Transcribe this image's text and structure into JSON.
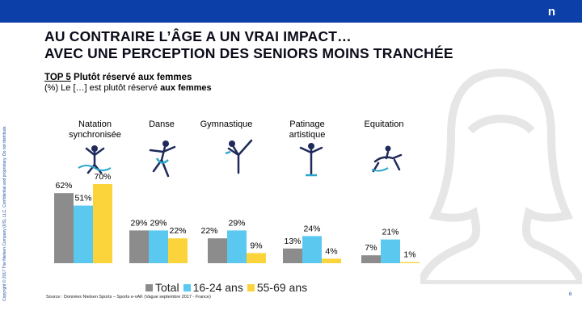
{
  "title": "AU CONTRAIRE L’ÂGE A UN VRAI IMPACT…\nAVEC UNE PERCEPTION DES SENIORS MOINS TRANCHÉE",
  "subtitle": {
    "top_prefix": "TOP 5",
    "top_rest": " Plutôt réservé aux femmes",
    "question_prefix": "(%) Le […] est plutôt réservé ",
    "question_bold": "aux femmes"
  },
  "copyright": "Copyright © 2017 The Nielsen Company (US), LLC. Confidential and proprietary. Do not distribute.",
  "source": "Source : Données Nielsen Sports – Sports e-vAK (Vague septembre 2017 - France)",
  "page_number": "6",
  "logo_text": "n",
  "colors": {
    "header": "#0d3fa8",
    "total": "#8c8c8c",
    "age_16_24": "#5bc8f0",
    "age_55_69": "#fbd43c",
    "silhouette": "#e6e6e6",
    "pictogram": "#1f2a5a",
    "pictogram_accent": "#2aa6c9"
  },
  "icons": [
    "swimmer-icon",
    "dancer-icon",
    "gymnast-icon",
    "skater-icon",
    "equestrian-icon"
  ],
  "chart_data": {
    "type": "bar",
    "categories": [
      "Natation\nsynchronisée",
      "Danse",
      "Gymnastique",
      "Patinage\nartistique",
      "Equitation"
    ],
    "series": [
      {
        "name": "Total",
        "values": [
          62,
          29,
          22,
          13,
          7
        ]
      },
      {
        "name": "16-24 ans",
        "values": [
          51,
          29,
          29,
          24,
          21
        ]
      },
      {
        "name": "55-69 ans",
        "values": [
          70,
          22,
          9,
          4,
          1
        ]
      }
    ],
    "value_labels": [
      [
        "62%",
        "29%",
        "22%",
        "13%",
        "7%"
      ],
      [
        "51%",
        "29%",
        "29%",
        "24%",
        "21%"
      ],
      [
        "70%",
        "22%",
        "9%",
        "4%",
        "1%"
      ]
    ],
    "ylim": [
      0,
      100
    ],
    "legend_position": "bottom",
    "grid": false
  }
}
